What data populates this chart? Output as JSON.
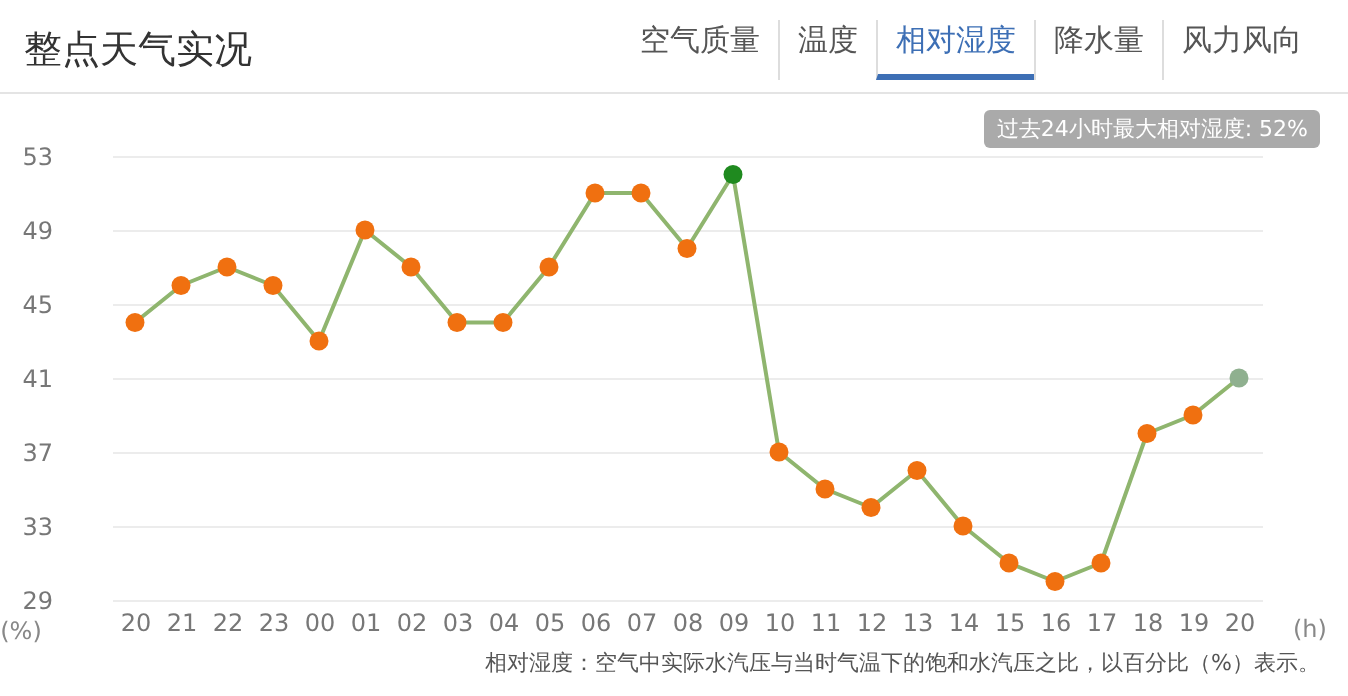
{
  "chart_data": {
    "type": "line",
    "title": "整点天气实况",
    "xlabel": "(h)",
    "ylabel": "(%)",
    "annotations": [
      "空气质量",
      "温度",
      "相对湿度",
      "降水量",
      "风力风向",
      "过去24小时最大相对湿度: 52%",
      "相对湿度：空气中实际水汽压与当时气温下的饱和水汽压之比，以百分比（%）表示。"
    ],
    "categories": [
      "20",
      "21",
      "22",
      "23",
      "00",
      "01",
      "02",
      "03",
      "04",
      "05",
      "06",
      "07",
      "08",
      "09",
      "10",
      "11",
      "12",
      "13",
      "14",
      "15",
      "16",
      "17",
      "18",
      "19",
      "20"
    ],
    "series": [
      {
        "color": "#8fb56e",
        "colors": [
          "#f07010",
          "#f07010",
          "#f07010",
          "#f07010",
          "#f07010",
          "#f07010",
          "#f07010",
          "#f07010",
          "#f07010",
          "#f07010",
          "#f07010",
          "#f07010",
          "#f07010",
          "#1f8a1f",
          "#f07010",
          "#f07010",
          "#f07010",
          "#f07010",
          "#f07010",
          "#f07010",
          "#f07010",
          "#f07010",
          "#f07010",
          "#f07010",
          "#8fb08f"
        ],
        "values": [
          44,
          46,
          47,
          46,
          43,
          49,
          47,
          44,
          44,
          47,
          51,
          51,
          48,
          52,
          37,
          35,
          34,
          36,
          33,
          31,
          30,
          31,
          38,
          39,
          41
        ]
      }
    ],
    "ylim": [
      29,
      53
    ],
    "yticks": [
      29,
      33,
      37,
      41,
      45,
      49,
      53
    ],
    "grid": "y",
    "marker": "circle",
    "line_style": "solid"
  }
}
